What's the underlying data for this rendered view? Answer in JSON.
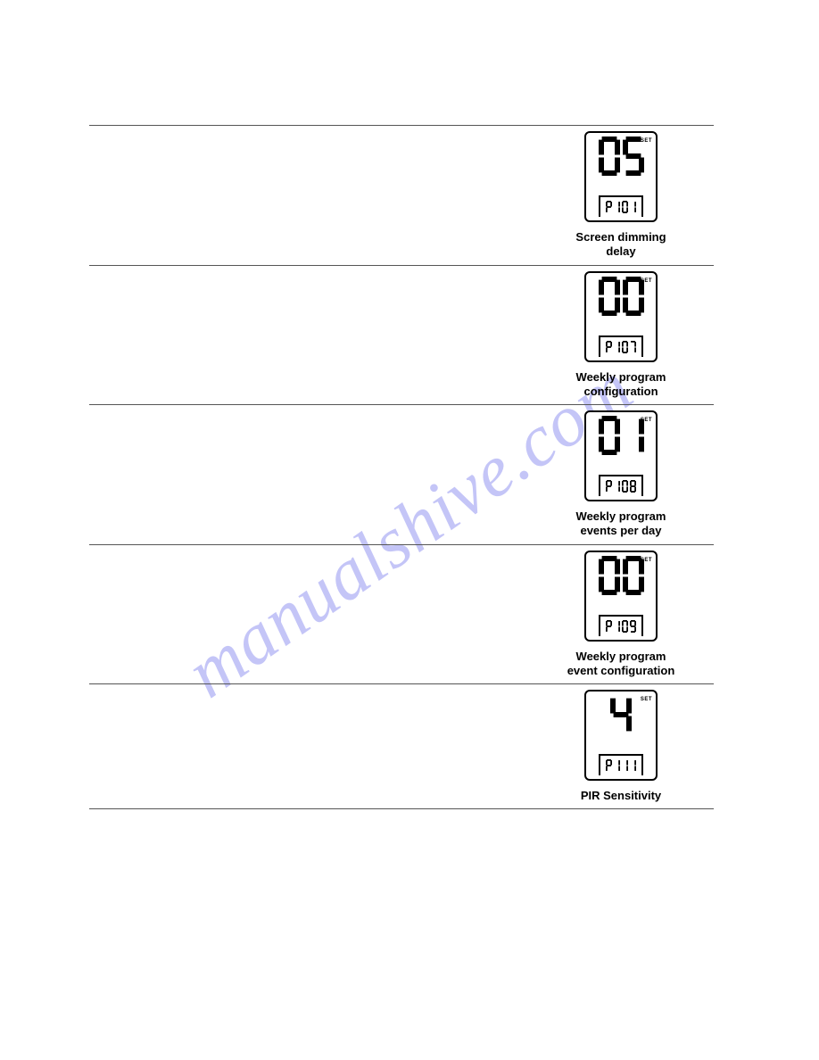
{
  "watermark": "manualshive.com",
  "rows": [
    {
      "big": "05",
      "small": "P101",
      "caption1": "Screen dimming",
      "caption2": "delay",
      "indicator": "SET"
    },
    {
      "big": "00",
      "small": "P107",
      "caption1": "Weekly program",
      "caption2": "configuration",
      "indicator": "SET"
    },
    {
      "big": "01",
      "small": "P108",
      "caption1": "Weekly program",
      "caption2": "events per day",
      "indicator": "SET"
    },
    {
      "big": "00",
      "small": "P109",
      "caption1": "Weekly program",
      "caption2": "event configuration",
      "indicator": "SET"
    },
    {
      "big": "4",
      "small": "P111",
      "caption1": "PIR Sensitivity",
      "caption2": "",
      "indicator": "SET"
    }
  ],
  "segColor": "#000000"
}
